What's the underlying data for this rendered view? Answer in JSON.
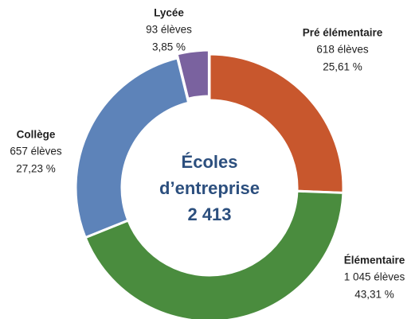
{
  "chart_data": {
    "type": "donut",
    "categories": [
      "Pré élémentaire",
      "Élémentaire",
      "Collège",
      "Lycée"
    ],
    "values": [
      25.61,
      43.31,
      27.23,
      3.85
    ],
    "value_labels": [
      "25,61 %",
      "43,31 %",
      "27,23 %",
      "3,85 %"
    ],
    "counts": [
      618,
      1045,
      657,
      93
    ],
    "count_labels": [
      "618 élèves",
      "1 045 élèves",
      "657 élèves",
      "93 élèves"
    ],
    "colors": [
      "#c8572d",
      "#4a8c3e",
      "#5d83b9",
      "#7a629f"
    ],
    "center_text": [
      "Écoles",
      "d’entreprise"
    ],
    "total": 2413,
    "total_label": "2 413"
  }
}
